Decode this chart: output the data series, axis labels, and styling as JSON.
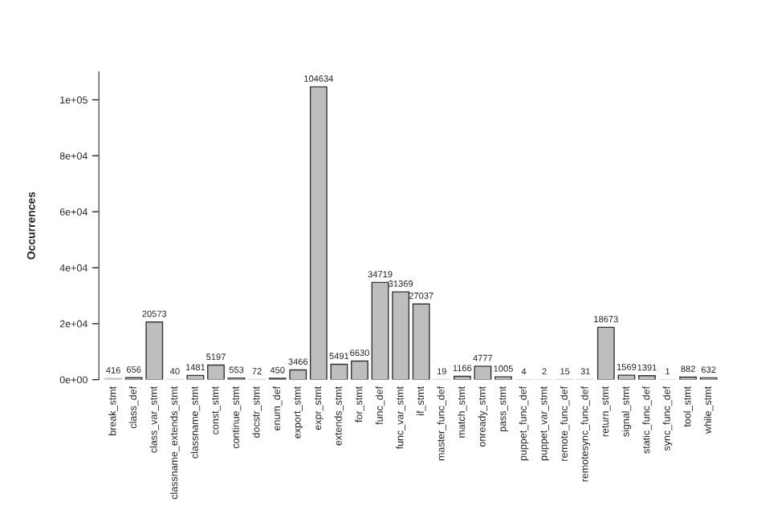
{
  "chart_data": {
    "type": "bar",
    "ylabel": "Occurrences",
    "categories": [
      "break_stmt",
      "class_def",
      "class_var_stmt",
      "classname_extends_stmt",
      "classname_stmt",
      "const_stmt",
      "continue_stmt",
      "docstr_stmt",
      "enum_def",
      "export_stmt",
      "expr_stmt",
      "extends_stmt",
      "for_stmt",
      "func_def",
      "func_var_stmt",
      "if_stmt",
      "master_func_def",
      "match_stmt",
      "onready_stmt",
      "pass_stmt",
      "puppet_func_def",
      "puppet_var_stmt",
      "remote_func_def",
      "remotesync_func_def",
      "return_stmt",
      "signal_stmt",
      "static_func_def",
      "sync_func_def",
      "tool_stmt",
      "while_stmt"
    ],
    "values": [
      416,
      656,
      20573,
      40,
      1481,
      5197,
      553,
      72,
      450,
      3466,
      104634,
      5491,
      6630,
      34719,
      31369,
      27037,
      19,
      1166,
      4777,
      1005,
      4,
      2,
      15,
      31,
      18673,
      1569,
      1391,
      1,
      882,
      632
    ],
    "color": "#bebebe",
    "ylim": [
      0,
      110000
    ],
    "yticks": [
      {
        "value": 0,
        "label": "0e+00"
      },
      {
        "value": 20000,
        "label": "2e+04"
      },
      {
        "value": 40000,
        "label": "4e+04"
      },
      {
        "value": 60000,
        "label": "6e+04"
      },
      {
        "value": 80000,
        "label": "8e+04"
      },
      {
        "value": 100000,
        "label": "1e+05"
      }
    ],
    "data_labels": true,
    "grid": false,
    "legend": false
  }
}
